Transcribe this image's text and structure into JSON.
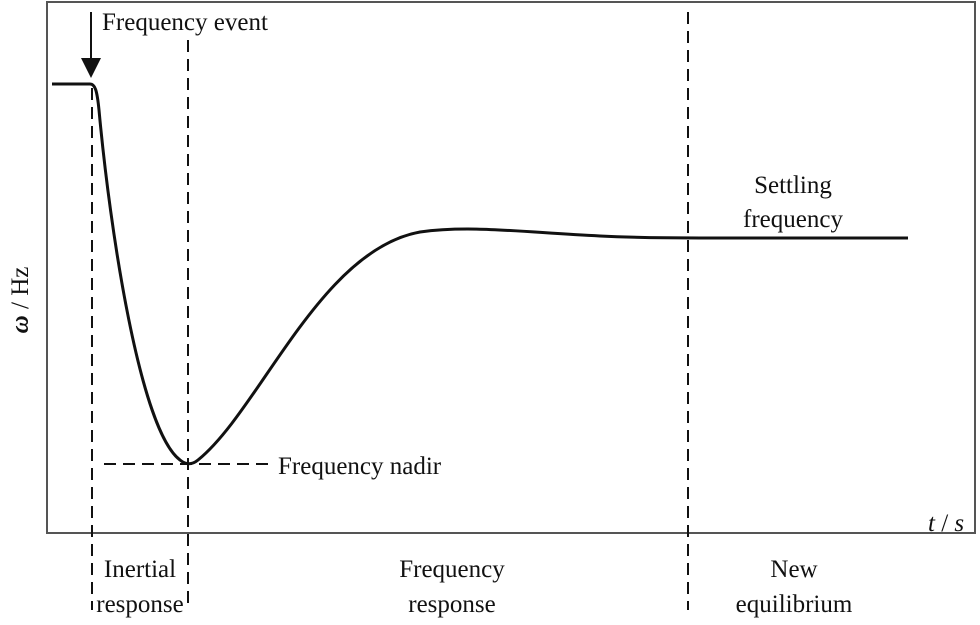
{
  "diagram": {
    "y_axis_label_symbol": "ω",
    "y_axis_label_unit": " / Hz",
    "x_axis_label_t": "t",
    "x_axis_label_sep": " / ",
    "x_axis_label_s": "s",
    "annotations": {
      "event": "Frequency event",
      "nadir": "Frequency nadir",
      "settling_line1": "Settling",
      "settling_line2": "frequency"
    },
    "phases": [
      {
        "line1": "Inertial",
        "line2": "response"
      },
      {
        "line1": "Frequency",
        "line2": "response"
      },
      {
        "line1": "New",
        "line2": "equilibrium"
      }
    ],
    "colors": {
      "line": "#111111",
      "frame": "#555555"
    }
  }
}
